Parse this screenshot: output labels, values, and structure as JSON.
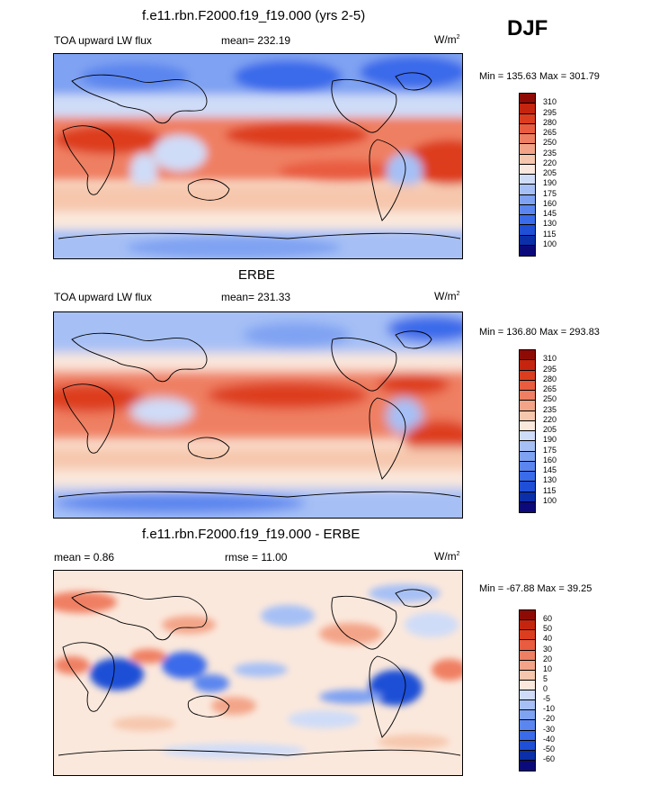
{
  "season": "DJF",
  "colors": {
    "abs_scale": [
      "#0c0a7a",
      "#0a2fa8",
      "#1f4fd6",
      "#3a6bea",
      "#5b86ef",
      "#7fa2f2",
      "#a6c0f5",
      "#cfdcf8",
      "#fbe8dc",
      "#f6c7ad",
      "#f3a488",
      "#ef7f62",
      "#e95c3f",
      "#dd3d1f",
      "#c5250e",
      "#8e0b05"
    ],
    "diff_scale": [
      "#0c0a7a",
      "#0a2fa8",
      "#1f4fd6",
      "#3a6bea",
      "#5b86ef",
      "#7fa2f2",
      "#a6c0f5",
      "#cfdcf8",
      "#fbe8dc",
      "#f6c7ad",
      "#f3a488",
      "#ef7f62",
      "#e95c3f",
      "#dd3d1f",
      "#c5250e",
      "#8e0b05"
    ]
  },
  "panels": [
    {
      "title": "f.e11.rbn.F2000.f19_f19.000 (yrs 2-5)",
      "left_label": "TOA upward LW flux",
      "center_label": "mean= 232.19",
      "units_base": "W/m",
      "units_exp": "2",
      "minmax": "Min = 135.63 Max = 301.79",
      "ticks": [
        "310",
        "295",
        "280",
        "265",
        "250",
        "235",
        "220",
        "205",
        "190",
        "175",
        "160",
        "145",
        "130",
        "115",
        "100"
      ]
    },
    {
      "title": "ERBE",
      "left_label": "TOA upward LW flux",
      "center_label": "mean= 231.33",
      "units_base": "W/m",
      "units_exp": "2",
      "minmax": "Min = 136.80 Max = 293.83",
      "ticks": [
        "310",
        "295",
        "280",
        "265",
        "250",
        "235",
        "220",
        "205",
        "190",
        "175",
        "160",
        "145",
        "130",
        "115",
        "100"
      ]
    },
    {
      "title": "f.e11.rbn.F2000.f19_f19.000 - ERBE",
      "left_label": "mean =   0.86",
      "center_label": "rmse =  11.00",
      "units_base": "W/m",
      "units_exp": "2",
      "minmax": "Min = -67.88 Max =  39.25",
      "ticks": [
        "60",
        "50",
        "40",
        "30",
        "20",
        "10",
        "5",
        "0",
        "-5",
        "-10",
        "-20",
        "-30",
        "-40",
        "-50",
        "-60"
      ]
    }
  ]
}
